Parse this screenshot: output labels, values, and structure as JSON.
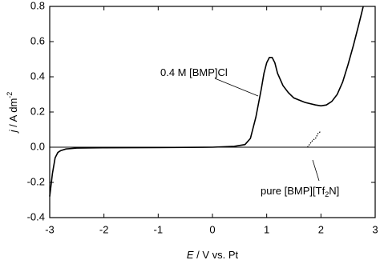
{
  "chart_data": {
    "type": "line",
    "xlabel": [
      "E",
      " / V vs. Pt"
    ],
    "ylabel": [
      "j",
      " / A dm",
      "-2"
    ],
    "xlim": [
      -3,
      3
    ],
    "xticks": [
      -3,
      -2,
      -1,
      0,
      1,
      2,
      3
    ],
    "ylim": [
      -0.4,
      0.8
    ],
    "yticks": [
      -0.4,
      -0.2,
      {
        "value": 0,
        "label": "0.0"
      },
      0.2,
      0.4,
      0.6,
      0.8
    ],
    "zero_line": true,
    "series": [
      {
        "color": "#000000",
        "style": "solid",
        "x": [
          -3.0,
          -2.95,
          -2.9,
          -2.85,
          -2.8,
          -2.7,
          -2.5,
          -2.0,
          -1.0,
          0.0,
          0.4,
          0.6,
          0.7,
          0.8,
          0.9,
          0.95,
          1.0,
          1.05,
          1.1,
          1.15,
          1.2,
          1.3,
          1.4,
          1.5,
          1.7,
          1.9,
          2.0,
          2.1,
          2.2,
          2.3,
          2.4,
          2.5,
          2.6,
          2.7,
          2.78
        ],
        "values": [
          -0.28,
          -0.15,
          -0.06,
          -0.03,
          -0.02,
          -0.01,
          -0.005,
          -0.003,
          -0.002,
          0.0,
          0.005,
          0.015,
          0.05,
          0.17,
          0.33,
          0.42,
          0.48,
          0.51,
          0.51,
          0.48,
          0.42,
          0.35,
          0.31,
          0.28,
          0.255,
          0.24,
          0.235,
          0.24,
          0.26,
          0.3,
          0.37,
          0.47,
          0.58,
          0.7,
          0.8
        ]
      },
      {
        "color": "#000000",
        "style": "dotted",
        "x": [
          1.75,
          1.8,
          1.85,
          1.9,
          1.95,
          2.0
        ],
        "values": [
          0.0,
          0.02,
          0.04,
          0.05,
          0.08,
          0.09
        ]
      }
    ],
    "annotations": [
      {
        "parts": [
          "0.4 M [BMP]Cl"
        ]
      },
      {
        "parts": [
          "pure [BMP][Tf",
          "2",
          "N]"
        ]
      }
    ]
  }
}
